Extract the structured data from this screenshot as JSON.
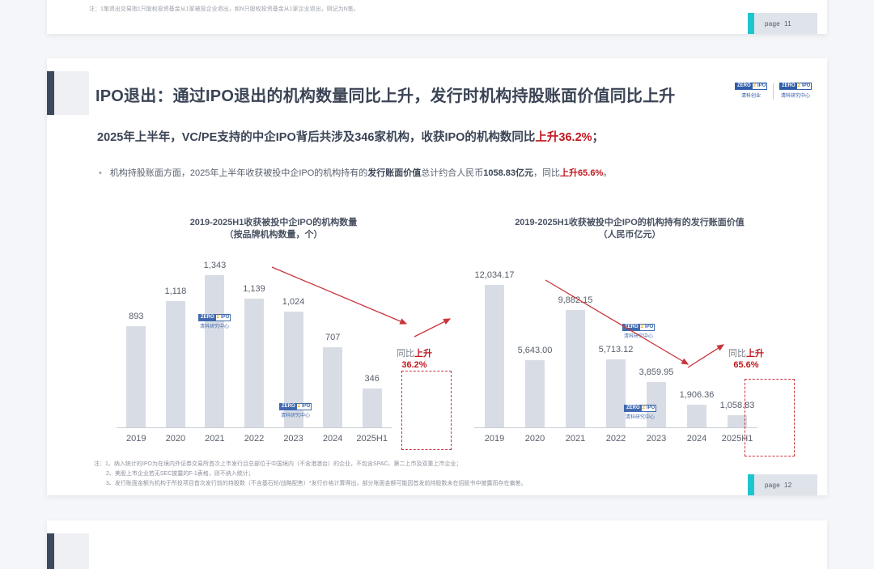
{
  "prev_slide": {
    "note": "注：1笔退出交易指1只股权投资基金从1家被投企业退出，如N只股权投资基金从1家企业退出，则记为N笔。",
    "page_label": "page",
    "page_number": "11"
  },
  "slide": {
    "title": "IPO退出：通过IPO退出的机构数量同比上升，发行时机构持股账面价值同比上升",
    "logos": [
      {
        "top_left": "ZERO",
        "top_mid": "2",
        "top_right": "IPO",
        "bottom": "清科创业"
      },
      {
        "top_left": "ZERO",
        "top_mid": "2",
        "top_right": "IPO",
        "bottom": "清科研究中心"
      }
    ],
    "headline": {
      "text": "2025年上半年，VC/PE支持的中企IPO背后共涉及346家机构，收获IPO的机构数同比",
      "highlight": "上升36.2%",
      "suffix": "；"
    },
    "bullet": {
      "marker": "•",
      "part1": "机构持股账面方面，2025年上半年收获被投中企IPO的机构持有的",
      "bold1": "发行账面价值",
      "part2": "总计约合人民币",
      "bold2": "1058.83亿元",
      "part3": "，同比",
      "highlight": "上升65.6%",
      "suffix": "。"
    },
    "footnotes": [
      "注：1、纳入统计的IPO为在境内外证券交易所首次上市发行且总部位于中国境内（不含港澳台）的企业，不包含SPAC、第二上市及双重上市企业；",
      "2、美股上市企业若无SEC披露的F-1表格，则不纳入统计；",
      "3、发行账面金额为机构于所投项目首次发行前的持股数（不含基石轮/战略配售）*发行价格计算得出，部分账面金额可能因首发前持股数未在招股书中披露而存在偏差。"
    ],
    "page_label": "page",
    "page_number": "12",
    "watermark": {
      "top_left": "ZERO",
      "top_mid": "2",
      "top_right": "IPO",
      "bottom": "清科研究中心"
    }
  },
  "chart_data": [
    {
      "type": "bar",
      "title": "2019-2025H1收获被投中企IPO的机构数量",
      "subtitle": "（按品牌机构数量，个）",
      "categories": [
        "2019",
        "2020",
        "2021",
        "2022",
        "2023",
        "2024",
        "2025H1"
      ],
      "values": [
        893,
        1118,
        1343,
        1139,
        1024,
        707,
        346
      ],
      "value_labels": [
        "893",
        "1,118",
        "1,343",
        "1,139",
        "1,024",
        "707",
        "346"
      ],
      "annotation": {
        "prefix": "同比",
        "highlight": "上升",
        "value": "36.2%"
      },
      "xlabel": "",
      "ylabel": "",
      "ylim": [
        0,
        1400
      ],
      "grid": false,
      "legend": null
    },
    {
      "type": "bar",
      "title": "2019-2025H1收获被投中企IPO的机构持有的发行账面价值",
      "subtitle": "（人民币亿元）",
      "categories": [
        "2019",
        "2020",
        "2021",
        "2022",
        "2023",
        "2024",
        "2025H1"
      ],
      "values": [
        12034.17,
        5643.0,
        9882.15,
        5713.12,
        3859.95,
        1906.36,
        1058.83
      ],
      "value_labels": [
        "12,034.17",
        "5,643.00",
        "9,882.15",
        "5,713.12",
        "3,859.95",
        "1,906.36",
        "1,058.83"
      ],
      "annotation": {
        "prefix": "同比",
        "highlight": "上升",
        "value": "65.6%"
      },
      "xlabel": "",
      "ylabel": "",
      "ylim": [
        0,
        12500
      ],
      "grid": false,
      "legend": null
    }
  ]
}
